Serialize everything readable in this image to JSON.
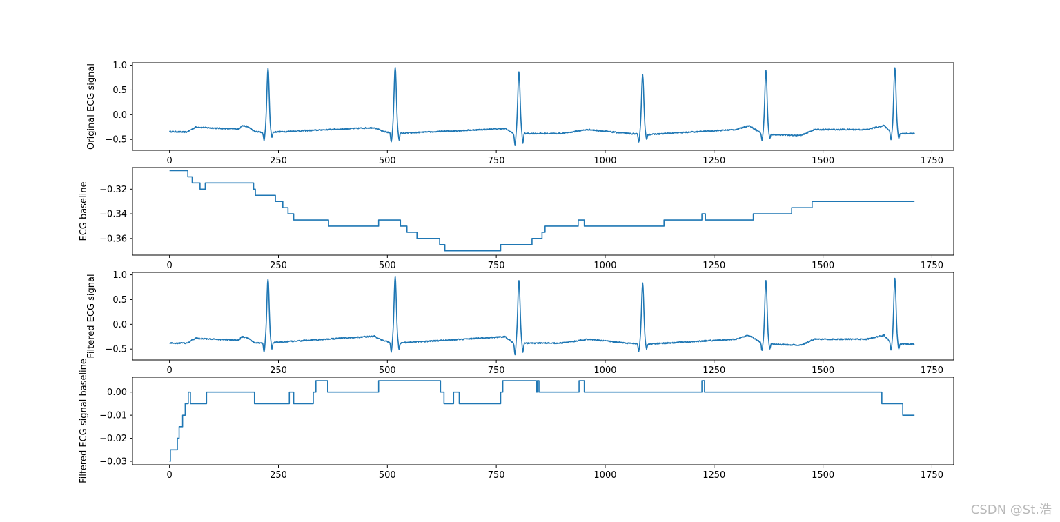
{
  "watermark": "CSDN @St.浩",
  "colors": {
    "line": "#1f77b4",
    "axes": "#000000",
    "background": "#ffffff",
    "watermark": "#b9b9b9"
  },
  "chart_data": [
    {
      "type": "line",
      "ylabel": "Original ECG signal",
      "xlim": [
        -85,
        1800
      ],
      "ylim": [
        -0.72,
        1.05
      ],
      "xticks": [
        0,
        250,
        500,
        750,
        1000,
        1250,
        1500,
        1750
      ],
      "yticks": [
        -0.5,
        0.0,
        0.5,
        1.0
      ],
      "yticklabels": [
        "−0.5",
        "0.0",
        "0.5",
        "1.0"
      ],
      "baseline": [
        [
          0,
          -0.34
        ],
        [
          30,
          -0.35
        ],
        [
          40,
          -0.35
        ],
        [
          50,
          -0.3
        ],
        [
          60,
          -0.25
        ],
        [
          100,
          -0.27
        ],
        [
          160,
          -0.29
        ],
        [
          165,
          -0.22
        ],
        [
          180,
          -0.24
        ],
        [
          195,
          -0.34
        ],
        [
          215,
          -0.36
        ],
        [
          470,
          -0.26
        ],
        [
          490,
          -0.34
        ],
        [
          520,
          -0.38
        ],
        [
          770,
          -0.28
        ],
        [
          790,
          -0.38
        ],
        [
          900,
          -0.38
        ],
        [
          960,
          -0.3
        ],
        [
          1050,
          -0.38
        ],
        [
          1100,
          -0.4
        ],
        [
          1300,
          -0.3
        ],
        [
          1330,
          -0.22
        ],
        [
          1360,
          -0.38
        ],
        [
          1380,
          -0.4
        ],
        [
          1450,
          -0.42
        ],
        [
          1480,
          -0.3
        ],
        [
          1600,
          -0.3
        ],
        [
          1640,
          -0.22
        ],
        [
          1660,
          -0.38
        ],
        [
          1710,
          -0.38
        ]
      ],
      "beats": [
        {
          "peak_x": 226,
          "peak": 0.94,
          "trough": -0.52
        },
        {
          "peak_x": 518,
          "peak": 0.96,
          "trough": -0.56
        },
        {
          "peak_x": 802,
          "peak": 0.86,
          "trough": -0.63
        },
        {
          "peak_x": 1086,
          "peak": 0.82,
          "trough": -0.56
        },
        {
          "peak_x": 1369,
          "peak": 0.89,
          "trough": -0.53
        },
        {
          "peak_x": 1665,
          "peak": 0.95,
          "trough": -0.53
        }
      ]
    },
    {
      "type": "line",
      "ylabel": "ECG baseline",
      "xlim": [
        -85,
        1800
      ],
      "ylim": [
        -0.3735,
        -0.3025
      ],
      "xticks": [
        0,
        250,
        500,
        750,
        1000,
        1250,
        1500,
        1750
      ],
      "yticks": [
        -0.36,
        -0.34,
        -0.32
      ],
      "yticklabels": [
        "−0.36",
        "−0.34",
        "−0.32"
      ],
      "points": [
        [
          0,
          -0.305
        ],
        [
          42,
          -0.305
        ],
        [
          42,
          -0.31
        ],
        [
          52,
          -0.31
        ],
        [
          52,
          -0.315
        ],
        [
          70,
          -0.315
        ],
        [
          70,
          -0.32
        ],
        [
          82,
          -0.32
        ],
        [
          82,
          -0.315
        ],
        [
          193,
          -0.315
        ],
        [
          193,
          -0.32
        ],
        [
          197,
          -0.32
        ],
        [
          197,
          -0.325
        ],
        [
          243,
          -0.325
        ],
        [
          243,
          -0.33
        ],
        [
          260,
          -0.33
        ],
        [
          260,
          -0.335
        ],
        [
          272,
          -0.335
        ],
        [
          272,
          -0.34
        ],
        [
          285,
          -0.34
        ],
        [
          285,
          -0.345
        ],
        [
          365,
          -0.345
        ],
        [
          365,
          -0.35
        ],
        [
          480,
          -0.35
        ],
        [
          480,
          -0.345
        ],
        [
          530,
          -0.345
        ],
        [
          530,
          -0.35
        ],
        [
          545,
          -0.35
        ],
        [
          545,
          -0.355
        ],
        [
          568,
          -0.355
        ],
        [
          568,
          -0.36
        ],
        [
          620,
          -0.36
        ],
        [
          620,
          -0.365
        ],
        [
          632,
          -0.365
        ],
        [
          632,
          -0.37
        ],
        [
          760,
          -0.37
        ],
        [
          760,
          -0.365
        ],
        [
          832,
          -0.365
        ],
        [
          832,
          -0.36
        ],
        [
          855,
          -0.36
        ],
        [
          855,
          -0.355
        ],
        [
          862,
          -0.355
        ],
        [
          862,
          -0.35
        ],
        [
          938,
          -0.35
        ],
        [
          938,
          -0.345
        ],
        [
          952,
          -0.345
        ],
        [
          952,
          -0.35
        ],
        [
          1135,
          -0.35
        ],
        [
          1135,
          -0.345
        ],
        [
          1222,
          -0.345
        ],
        [
          1222,
          -0.34
        ],
        [
          1230,
          -0.34
        ],
        [
          1230,
          -0.345
        ],
        [
          1340,
          -0.345
        ],
        [
          1340,
          -0.34
        ],
        [
          1428,
          -0.34
        ],
        [
          1428,
          -0.335
        ],
        [
          1475,
          -0.335
        ],
        [
          1475,
          -0.33
        ],
        [
          1710,
          -0.33
        ]
      ]
    },
    {
      "type": "line",
      "ylabel": "Filtered ECG signal",
      "xlim": [
        -85,
        1800
      ],
      "ylim": [
        -0.72,
        1.05
      ],
      "xticks": [
        0,
        250,
        500,
        750,
        1000,
        1250,
        1500,
        1750
      ],
      "yticks": [
        -0.5,
        0.0,
        0.5,
        1.0
      ],
      "yticklabels": [
        "−0.5",
        "0.0",
        "0.5",
        "1.0"
      ],
      "baseline": [
        [
          0,
          -0.38
        ],
        [
          30,
          -0.38
        ],
        [
          40,
          -0.38
        ],
        [
          50,
          -0.33
        ],
        [
          60,
          -0.28
        ],
        [
          100,
          -0.3
        ],
        [
          160,
          -0.32
        ],
        [
          165,
          -0.25
        ],
        [
          180,
          -0.27
        ],
        [
          195,
          -0.37
        ],
        [
          215,
          -0.38
        ],
        [
          470,
          -0.24
        ],
        [
          490,
          -0.33
        ],
        [
          520,
          -0.38
        ],
        [
          770,
          -0.25
        ],
        [
          790,
          -0.38
        ],
        [
          900,
          -0.38
        ],
        [
          960,
          -0.3
        ],
        [
          1050,
          -0.38
        ],
        [
          1100,
          -0.4
        ],
        [
          1300,
          -0.3
        ],
        [
          1330,
          -0.22
        ],
        [
          1360,
          -0.38
        ],
        [
          1380,
          -0.4
        ],
        [
          1450,
          -0.42
        ],
        [
          1480,
          -0.3
        ],
        [
          1600,
          -0.3
        ],
        [
          1640,
          -0.22
        ],
        [
          1660,
          -0.4
        ],
        [
          1710,
          -0.4
        ]
      ],
      "beats": [
        {
          "peak_x": 226,
          "peak": 0.92,
          "trough": -0.55
        },
        {
          "peak_x": 518,
          "peak": 0.96,
          "trough": -0.57
        },
        {
          "peak_x": 802,
          "peak": 0.88,
          "trough": -0.62
        },
        {
          "peak_x": 1086,
          "peak": 0.83,
          "trough": -0.56
        },
        {
          "peak_x": 1369,
          "peak": 0.89,
          "trough": -0.55
        },
        {
          "peak_x": 1665,
          "peak": 0.93,
          "trough": -0.55
        }
      ]
    },
    {
      "type": "line",
      "ylabel": "Filtered ECG signal baseline",
      "xlim": [
        -85,
        1800
      ],
      "ylim": [
        -0.0315,
        0.0065
      ],
      "xticks": [
        0,
        250,
        500,
        750,
        1000,
        1250,
        1500,
        1750
      ],
      "yticks": [
        -0.03,
        -0.02,
        -0.01,
        0.0
      ],
      "yticklabels": [
        "−0.03",
        "−0.02",
        "−0.01",
        "0.00"
      ],
      "points": [
        [
          0,
          -0.03
        ],
        [
          2,
          -0.03
        ],
        [
          2,
          -0.025
        ],
        [
          18,
          -0.025
        ],
        [
          18,
          -0.02
        ],
        [
          22,
          -0.02
        ],
        [
          22,
          -0.015
        ],
        [
          30,
          -0.015
        ],
        [
          30,
          -0.01
        ],
        [
          36,
          -0.01
        ],
        [
          36,
          -0.005
        ],
        [
          43,
          -0.005
        ],
        [
          43,
          0.0
        ],
        [
          48,
          0.0
        ],
        [
          48,
          -0.005
        ],
        [
          85,
          -0.005
        ],
        [
          85,
          0.0
        ],
        [
          195,
          0.0
        ],
        [
          195,
          -0.005
        ],
        [
          275,
          -0.005
        ],
        [
          275,
          0.0
        ],
        [
          285,
          0.0
        ],
        [
          285,
          -0.005
        ],
        [
          330,
          -0.005
        ],
        [
          330,
          0.0
        ],
        [
          336,
          0.0
        ],
        [
          336,
          0.005
        ],
        [
          363,
          0.005
        ],
        [
          363,
          0.0
        ],
        [
          480,
          0.0
        ],
        [
          480,
          0.005
        ],
        [
          622,
          0.005
        ],
        [
          622,
          0.0
        ],
        [
          630,
          0.0
        ],
        [
          630,
          -0.005
        ],
        [
          652,
          -0.005
        ],
        [
          652,
          0.0
        ],
        [
          665,
          0.0
        ],
        [
          665,
          -0.005
        ],
        [
          760,
          -0.005
        ],
        [
          760,
          0.0
        ],
        [
          765,
          0.0
        ],
        [
          765,
          0.005
        ],
        [
          842,
          0.005
        ],
        [
          842,
          0.0
        ],
        [
          844,
          0.0
        ],
        [
          844,
          0.005
        ],
        [
          848,
          0.005
        ],
        [
          848,
          0.0
        ],
        [
          940,
          0.0
        ],
        [
          940,
          0.005
        ],
        [
          952,
          0.005
        ],
        [
          952,
          0.0
        ],
        [
          1222,
          0.0
        ],
        [
          1222,
          0.005
        ],
        [
          1228,
          0.005
        ],
        [
          1228,
          0.0
        ],
        [
          1635,
          0.0
        ],
        [
          1635,
          -0.005
        ],
        [
          1683,
          -0.005
        ],
        [
          1683,
          -0.01
        ],
        [
          1710,
          -0.01
        ]
      ]
    }
  ]
}
